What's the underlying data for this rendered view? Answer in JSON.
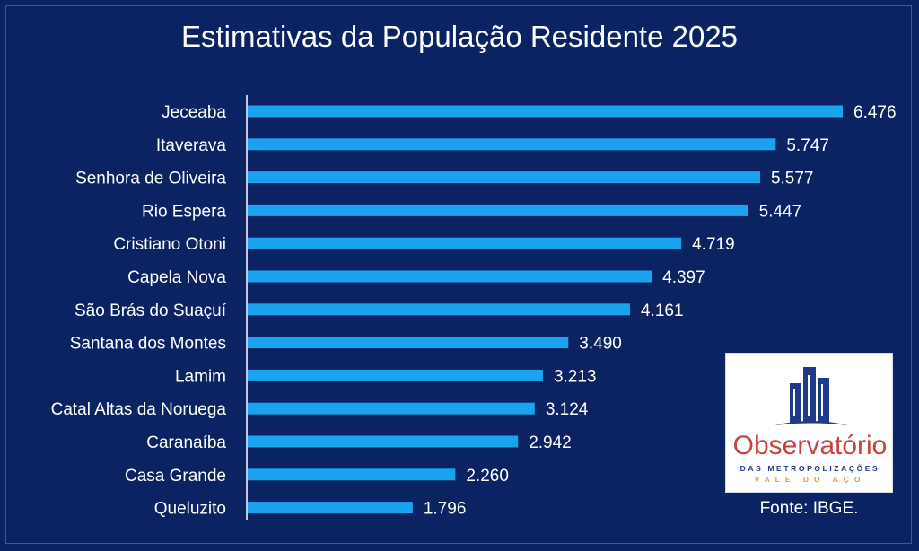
{
  "chart_data": {
    "type": "bar",
    "orientation": "horizontal",
    "title": "Estimativas da População Residente 2025",
    "categories": [
      "Jeceaba",
      "Itaverava",
      "Senhora de Oliveira",
      "Rio Espera",
      "Cristiano Otoni",
      "Capela Nova",
      "São Brás do Suaçuí",
      "Santana dos Montes",
      "Lamim",
      "Catal Altas da Noruega",
      "Caranaíba",
      "Casa Grande",
      "Queluzito"
    ],
    "values": [
      6476,
      5747,
      5577,
      5447,
      4719,
      4397,
      4161,
      3490,
      3213,
      3124,
      2942,
      2260,
      1796
    ],
    "value_labels": [
      "6.476",
      "5.747",
      "5.577",
      "5.447",
      "4.719",
      "4.397",
      "4.161",
      "3.490",
      "3.213",
      "3.124",
      "2.942",
      "2.260",
      "1.796"
    ],
    "xlim": [
      0,
      6476
    ],
    "grid": false,
    "colors": {
      "background": "#0b2362",
      "bar": "#1aa3ee",
      "text": "#ffffff"
    }
  },
  "logo": {
    "name": "Observatório",
    "line1": "DAS METROPOLIZAÇÕES",
    "line2": "VALE DO AÇO"
  },
  "source": "Fonte: IBGE."
}
